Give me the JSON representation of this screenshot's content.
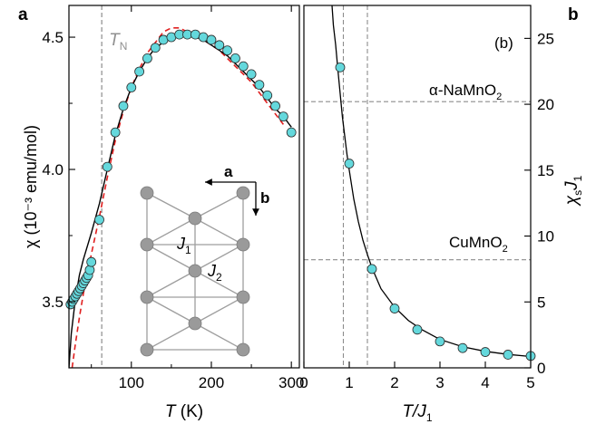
{
  "panels": {
    "left_letter": "a",
    "right_letter": "b"
  },
  "colors": {
    "marker_fill": "#64d8dc",
    "marker_stroke": "#2b2b2b",
    "fit_curve": "#000000",
    "model_curve": "#e02020",
    "guide_line": "#8c8c8c",
    "lattice_node": "#9a9a9a",
    "lattice_bond": "#9e9e9e"
  },
  "chart_data": [
    {
      "id": "left",
      "type": "scatter",
      "xlabel_main": "T",
      "xlabel_unit": " (K)",
      "ylabel": "χ (10⁻³ emu/mol)",
      "xlim": [
        22,
        310
      ],
      "ylim": [
        3.25,
        4.62
      ],
      "xticks": [
        100,
        200,
        300
      ],
      "yticks": [
        3.5,
        4.0,
        4.5
      ],
      "xtick_labels": [
        "100",
        "200",
        "300"
      ],
      "ytick_labels": [
        "3.5",
        "4.0",
        "4.5"
      ],
      "tn_label": "T",
      "tn_sub": "N",
      "tn_x": 63,
      "points": {
        "x": [
          24,
          26,
          28,
          30,
          32,
          34,
          36,
          38,
          40,
          42,
          44,
          46,
          48,
          50,
          60,
          70,
          80,
          90,
          100,
          110,
          120,
          130,
          140,
          150,
          160,
          170,
          180,
          190,
          200,
          210,
          220,
          230,
          240,
          250,
          260,
          270,
          280,
          290,
          300
        ],
        "y": [
          3.49,
          3.5,
          3.51,
          3.52,
          3.53,
          3.54,
          3.55,
          3.56,
          3.57,
          3.58,
          3.59,
          3.6,
          3.62,
          3.65,
          3.81,
          4.01,
          4.14,
          4.24,
          4.31,
          4.37,
          4.42,
          4.46,
          4.49,
          4.5,
          4.51,
          4.51,
          4.51,
          4.5,
          4.49,
          4.47,
          4.45,
          4.42,
          4.39,
          4.36,
          4.32,
          4.28,
          4.24,
          4.2,
          4.14
        ]
      },
      "fit_curve": {
        "x": [
          22,
          25,
          30,
          35,
          40,
          50,
          60,
          70,
          80,
          90,
          100,
          110,
          120,
          130,
          140,
          150,
          160,
          170,
          180,
          190,
          200,
          210,
          220,
          230,
          240,
          250,
          260,
          270,
          280,
          290,
          300
        ],
        "y": [
          3.25,
          3.38,
          3.51,
          3.6,
          3.66,
          3.76,
          3.87,
          4.0,
          4.13,
          4.23,
          4.31,
          4.37,
          4.42,
          4.46,
          4.48,
          4.5,
          4.505,
          4.505,
          4.5,
          4.49,
          4.47,
          4.45,
          4.43,
          4.4,
          4.37,
          4.34,
          4.31,
          4.27,
          4.23,
          4.2,
          4.16
        ]
      },
      "model_curve": {
        "x": [
          26,
          30,
          35,
          40,
          50,
          60,
          70,
          80,
          90,
          100,
          110,
          120,
          130,
          140,
          150,
          160,
          170,
          180,
          190,
          200,
          210,
          220,
          230,
          240,
          250,
          260,
          270,
          280,
          290
        ],
        "y": [
          3.25,
          3.34,
          3.44,
          3.53,
          3.68,
          3.82,
          3.97,
          4.11,
          4.22,
          4.31,
          4.38,
          4.44,
          4.48,
          4.52,
          4.535,
          4.535,
          4.52,
          4.51,
          4.49,
          4.47,
          4.45,
          4.42,
          4.39,
          4.36,
          4.33,
          4.29,
          4.25,
          4.21,
          4.17
        ]
      },
      "inset": {
        "axis_a": "a",
        "axis_b": "b",
        "bond_j1": "J",
        "bond_j1_sub": "1",
        "bond_j2": "J",
        "bond_j2_sub": "2"
      }
    },
    {
      "id": "right",
      "type": "scatter",
      "inner_label": "(b)",
      "xlabel_main": "T/J",
      "xlabel_sub": "1",
      "ylabel_main": "χ",
      "ylabel_sub1": "s",
      "ylabel_mid": "J",
      "ylabel_sub2": "1",
      "xlim": [
        0,
        5
      ],
      "ylim": [
        0,
        27.5
      ],
      "xticks": [
        0,
        1,
        2,
        3,
        4,
        5
      ],
      "yticks": [
        0,
        5,
        10,
        15,
        20,
        25
      ],
      "xtick_labels": [
        "0",
        "1",
        "2",
        "3",
        "4",
        "5"
      ],
      "ytick_labels": [
        "0",
        "5",
        "10",
        "15",
        "20",
        "25"
      ],
      "points": {
        "x": [
          0.8,
          1.0,
          1.5,
          2.0,
          2.5,
          3.0,
          3.5,
          4.0,
          4.5,
          5.0
        ],
        "y": [
          22.8,
          15.5,
          7.5,
          4.5,
          2.9,
          2.0,
          1.5,
          1.2,
          1.0,
          0.9
        ]
      },
      "curve": {
        "x": [
          0.62,
          0.65,
          0.7,
          0.75,
          0.8,
          0.85,
          0.9,
          0.95,
          1.0,
          1.1,
          1.2,
          1.3,
          1.4,
          1.5,
          1.7,
          2.0,
          2.3,
          2.6,
          3.0,
          3.5,
          4.0,
          4.5,
          5.0
        ],
        "y": [
          27.5,
          26.0,
          24.5,
          22.6,
          20.8,
          19.0,
          17.6,
          16.2,
          15.0,
          12.8,
          11.1,
          9.7,
          8.6,
          7.6,
          6.0,
          4.6,
          3.6,
          2.9,
          2.15,
          1.6,
          1.25,
          1.02,
          0.86
        ]
      },
      "guides": [
        {
          "label": "α-NaMnO",
          "sub": "2",
          "y": 20.2,
          "x": 0.87
        },
        {
          "label": "CuMnO",
          "sub": "2",
          "y": 8.2,
          "x": 1.4
        }
      ]
    }
  ]
}
